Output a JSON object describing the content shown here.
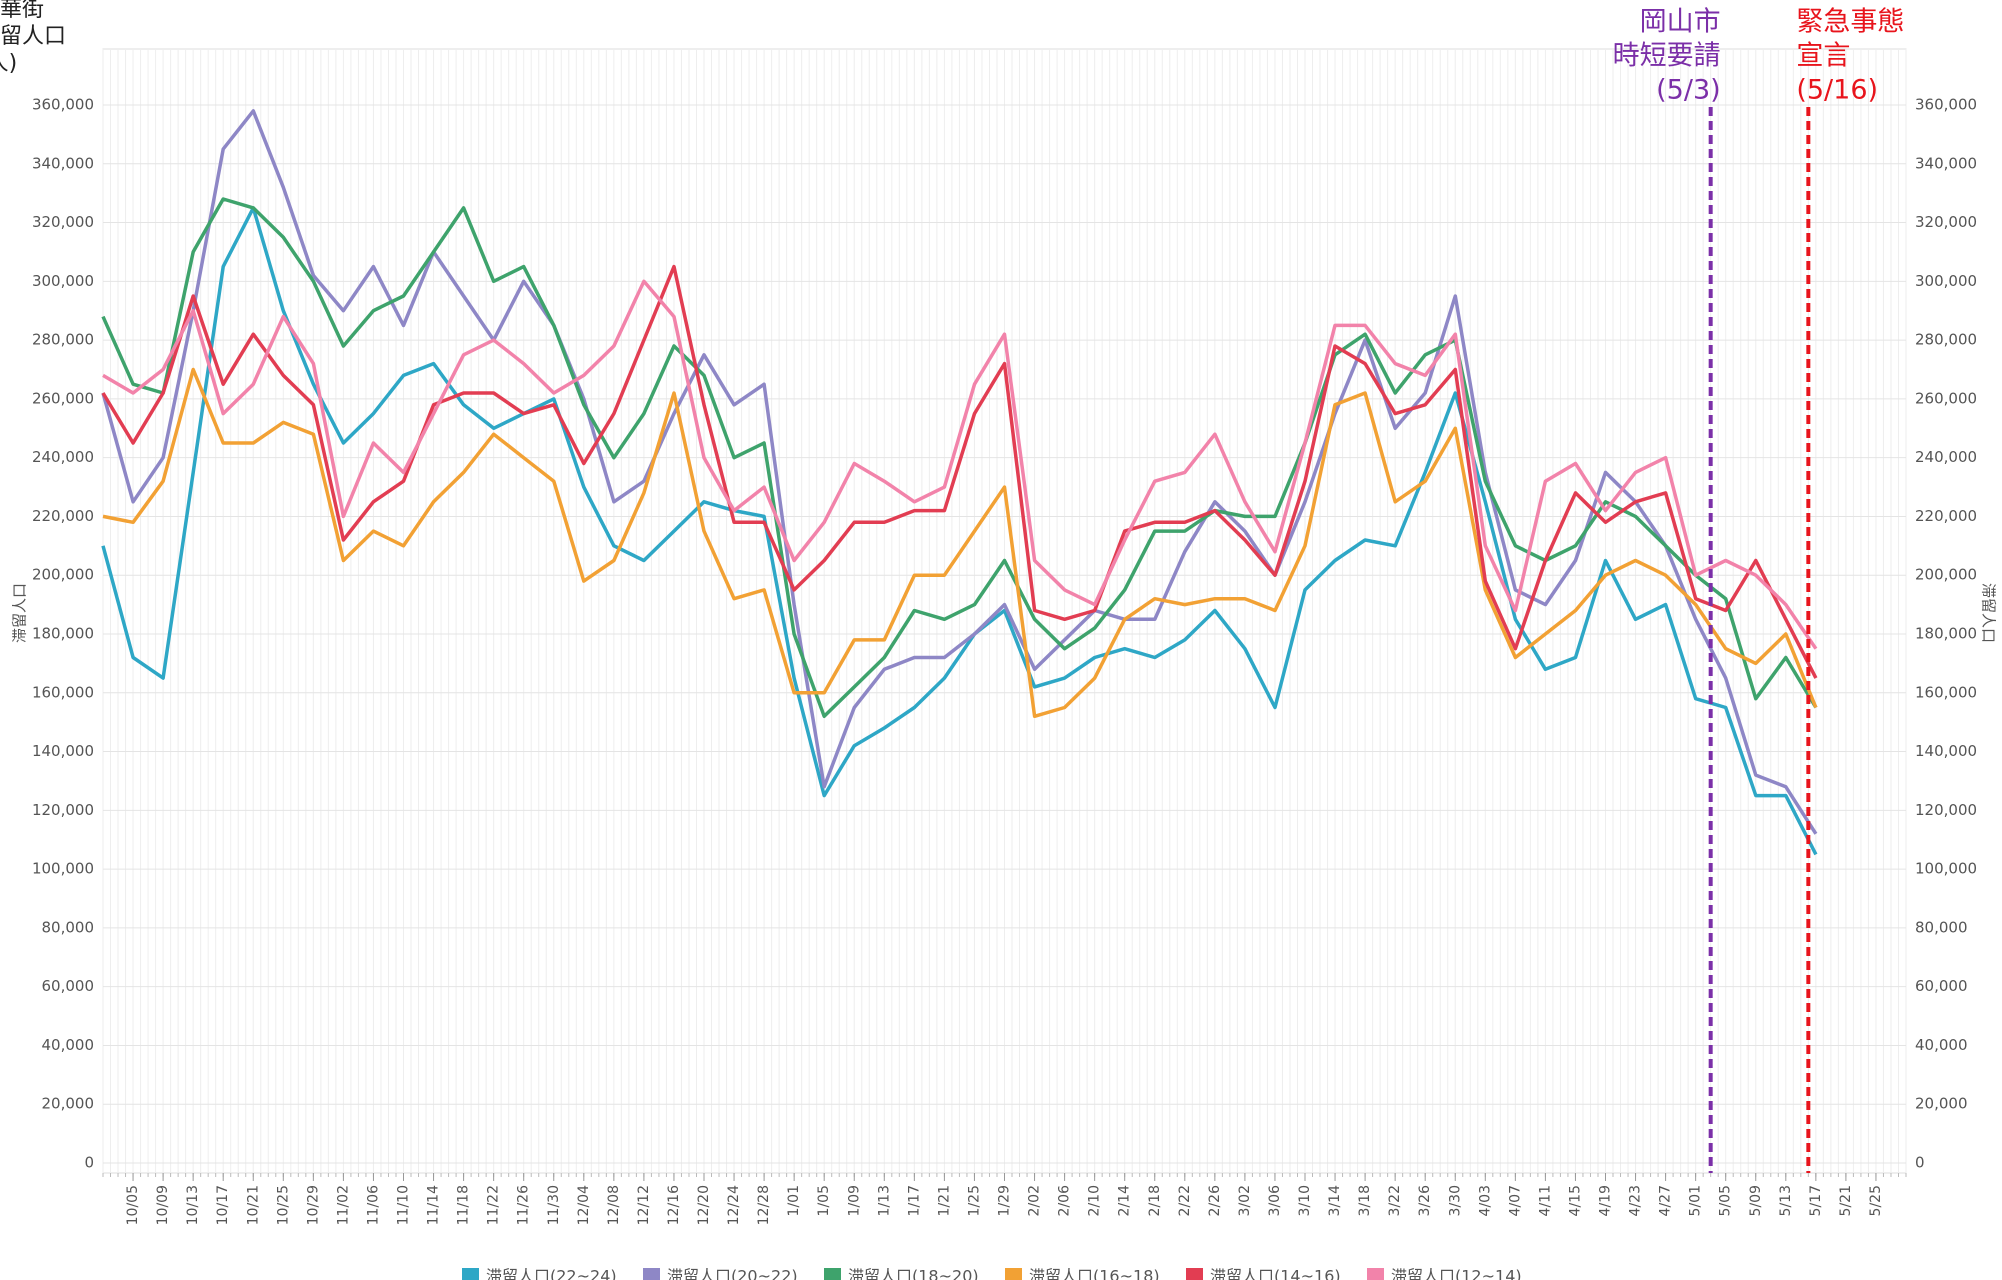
{
  "chart_data": {
    "type": "line",
    "y_axis_title": [
      "繁華街",
      "滞留人口",
      "(人)"
    ],
    "y_axis_label": "滞留人口",
    "y2_axis_label": "滞留人口",
    "categories": [
      null,
      "10/05",
      "10/09",
      "10/13",
      "10/17",
      "10/21",
      "10/25",
      "10/29",
      "11/02",
      "11/06",
      "11/10",
      "11/14",
      "11/18",
      "11/22",
      "11/26",
      "11/30",
      "12/04",
      "12/08",
      "12/12",
      "12/16",
      "12/20",
      "12/24",
      "12/28",
      "1/01",
      "1/05",
      "1/09",
      "1/13",
      "1/17",
      "1/21",
      "1/25",
      "1/29",
      "2/02",
      "2/06",
      "2/10",
      "2/14",
      "2/18",
      "2/22",
      "2/26",
      "3/02",
      "3/06",
      "3/10",
      "3/14",
      "3/18",
      "3/22",
      "3/26",
      "3/30",
      "4/03",
      "4/07",
      "4/11",
      "4/15",
      "4/19",
      "4/23",
      "4/27",
      "5/01",
      "5/05",
      "5/09",
      "5/13",
      "5/17",
      "5/21",
      "5/25"
    ],
    "series": [
      {
        "name": "滞留人口(22~24)",
        "color": "#2ea7c6",
        "values": [
          210000,
          172000,
          165000,
          235000,
          305000,
          325000,
          290000,
          265000,
          245000,
          255000,
          268000,
          272000,
          258000,
          250000,
          255000,
          260000,
          230000,
          210000,
          205000,
          215000,
          225000,
          222000,
          220000,
          165000,
          125000,
          142000,
          148000,
          155000,
          165000,
          180000,
          188000,
          162000,
          165000,
          172000,
          175000,
          172000,
          178000,
          188000,
          175000,
          155000,
          195000,
          205000,
          212000,
          210000,
          235000,
          262000,
          225000,
          185000,
          168000,
          172000,
          205000,
          185000,
          190000,
          158000,
          155000,
          125000,
          125000,
          105000,
          null,
          null
        ]
      },
      {
        "name": "滞留人口(20~22)",
        "color": "#8e87c6",
        "values": [
          262000,
          225000,
          240000,
          290000,
          345000,
          358000,
          332000,
          302000,
          290000,
          305000,
          285000,
          310000,
          295000,
          280000,
          300000,
          285000,
          260000,
          225000,
          232000,
          255000,
          275000,
          258000,
          265000,
          190000,
          128000,
          155000,
          168000,
          172000,
          172000,
          180000,
          190000,
          168000,
          178000,
          188000,
          185000,
          185000,
          208000,
          225000,
          215000,
          200000,
          225000,
          255000,
          280000,
          250000,
          262000,
          295000,
          235000,
          195000,
          190000,
          205000,
          235000,
          225000,
          210000,
          185000,
          165000,
          132000,
          128000,
          112000,
          null,
          null
        ]
      },
      {
        "name": "滞留人口(18~20)",
        "color": "#3ea36c",
        "values": [
          288000,
          265000,
          262000,
          310000,
          328000,
          325000,
          315000,
          300000,
          278000,
          290000,
          295000,
          310000,
          325000,
          300000,
          305000,
          285000,
          258000,
          240000,
          255000,
          278000,
          268000,
          240000,
          245000,
          180000,
          152000,
          162000,
          172000,
          188000,
          185000,
          190000,
          205000,
          185000,
          175000,
          182000,
          195000,
          215000,
          215000,
          222000,
          220000,
          220000,
          245000,
          275000,
          282000,
          262000,
          275000,
          280000,
          232000,
          210000,
          205000,
          210000,
          225000,
          220000,
          210000,
          200000,
          192000,
          158000,
          172000,
          155000,
          null,
          null
        ]
      },
      {
        "name": "滞留人口(16~18)",
        "color": "#f2a134",
        "values": [
          220000,
          218000,
          232000,
          270000,
          245000,
          245000,
          252000,
          248000,
          205000,
          215000,
          210000,
          225000,
          235000,
          248000,
          240000,
          232000,
          198000,
          205000,
          228000,
          262000,
          215000,
          192000,
          195000,
          160000,
          160000,
          178000,
          178000,
          200000,
          200000,
          215000,
          230000,
          152000,
          155000,
          165000,
          185000,
          192000,
          190000,
          192000,
          192000,
          188000,
          210000,
          258000,
          262000,
          225000,
          232000,
          250000,
          195000,
          172000,
          180000,
          188000,
          200000,
          205000,
          200000,
          190000,
          175000,
          170000,
          180000,
          155000,
          null,
          null
        ]
      },
      {
        "name": "滞留人口(14~16)",
        "color": "#e23d52",
        "values": [
          262000,
          245000,
          262000,
          295000,
          265000,
          282000,
          268000,
          258000,
          212000,
          225000,
          232000,
          258000,
          262000,
          262000,
          255000,
          258000,
          238000,
          255000,
          280000,
          305000,
          258000,
          218000,
          218000,
          195000,
          205000,
          218000,
          218000,
          222000,
          222000,
          255000,
          272000,
          188000,
          185000,
          188000,
          215000,
          218000,
          218000,
          222000,
          212000,
          200000,
          232000,
          278000,
          272000,
          255000,
          258000,
          270000,
          198000,
          175000,
          205000,
          228000,
          218000,
          225000,
          228000,
          192000,
          188000,
          205000,
          185000,
          165000,
          null,
          null
        ]
      },
      {
        "name": "滞留人口(12~14)",
        "color": "#f283aa",
        "values": [
          268000,
          262000,
          270000,
          290000,
          255000,
          265000,
          288000,
          272000,
          220000,
          245000,
          235000,
          255000,
          275000,
          280000,
          272000,
          262000,
          268000,
          278000,
          300000,
          288000,
          240000,
          222000,
          230000,
          205000,
          218000,
          238000,
          232000,
          225000,
          230000,
          265000,
          282000,
          205000,
          195000,
          190000,
          212000,
          232000,
          235000,
          248000,
          225000,
          208000,
          245000,
          285000,
          285000,
          272000,
          268000,
          282000,
          210000,
          188000,
          232000,
          238000,
          222000,
          235000,
          240000,
          200000,
          205000,
          200000,
          190000,
          175000,
          null,
          null
        ]
      }
    ],
    "ylim": [
      0,
      360000
    ],
    "yticks": [
      0,
      {
        "value": 20000,
        "label": "20,000"
      },
      {
        "value": 40000,
        "label": "40,000"
      },
      {
        "value": 60000,
        "label": "60,000"
      },
      {
        "value": 80000,
        "label": "80,000"
      },
      {
        "value": 100000,
        "label": "100,000"
      },
      {
        "value": 120000,
        "label": "120,000"
      },
      {
        "value": 140000,
        "label": "140,000"
      },
      {
        "value": 160000,
        "label": "160,000"
      },
      {
        "value": 180000,
        "label": "180,000"
      },
      {
        "value": 200000,
        "label": "200,000"
      },
      {
        "value": 220000,
        "label": "220,000"
      },
      {
        "value": 240000,
        "label": "240,000"
      },
      {
        "value": 260000,
        "label": "260,000"
      },
      {
        "value": 280000,
        "label": "280,000"
      },
      {
        "value": 300000,
        "label": "300,000"
      },
      {
        "value": 320000,
        "label": "320,000"
      },
      {
        "value": 340000,
        "label": "340,000"
      },
      {
        "value": 360000,
        "label": "360,000"
      }
    ],
    "grid": true,
    "legend": "bottom",
    "annotations": [
      {
        "lines": [
          "岡山市",
          "時短要請",
          "(5/3)"
        ],
        "x": "5/03",
        "color": "#7b2fa8",
        "align": "right"
      },
      {
        "lines": [
          "緊急事態",
          "宣言",
          "(5/16)"
        ],
        "x": "5/16",
        "color": "#e8141c",
        "align": "left"
      }
    ]
  }
}
